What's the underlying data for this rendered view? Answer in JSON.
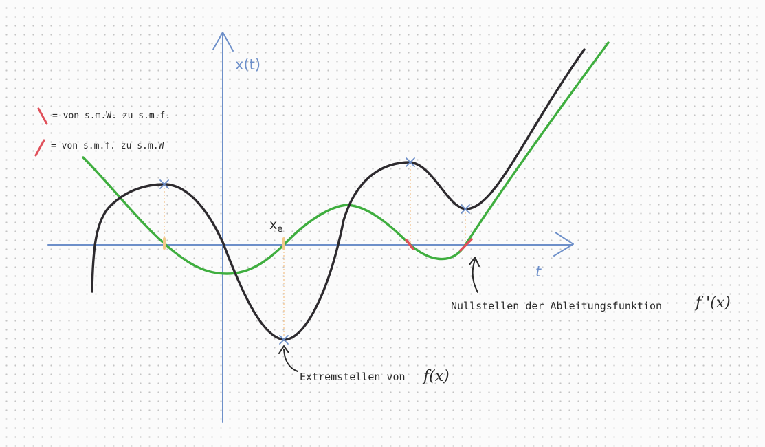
{
  "axes": {
    "y_label": "x(t)",
    "x_label": "t",
    "color": "#6d8fc9"
  },
  "legend": [
    {
      "text": "= von s.m.W. zu s.m.f.",
      "mark_color": "#e0505a"
    },
    {
      "text": "= von s.m.f. zu s.m.W",
      "mark_color": "#e0505a"
    }
  ],
  "labels": {
    "xe": "xe",
    "xe_base": "x",
    "xe_sub": "e",
    "extrema_note": "Extremstellen von",
    "extrema_fx": "f(x)",
    "zeros_note": "Nullstellen der Ableitungsfunktion",
    "zeros_fx": "f '(x)"
  },
  "curves": {
    "f": {
      "color": "#2d2a2e",
      "description_on_canvas": ""
    },
    "f_prime": {
      "color": "#3fae3f",
      "description_on_canvas": ""
    }
  },
  "marker_colors": {
    "extremum": "#6d8fc9",
    "guide_line": "#f3c48e",
    "zero_neutral": "#f2c98a",
    "zero_red": "#e0505a"
  }
}
